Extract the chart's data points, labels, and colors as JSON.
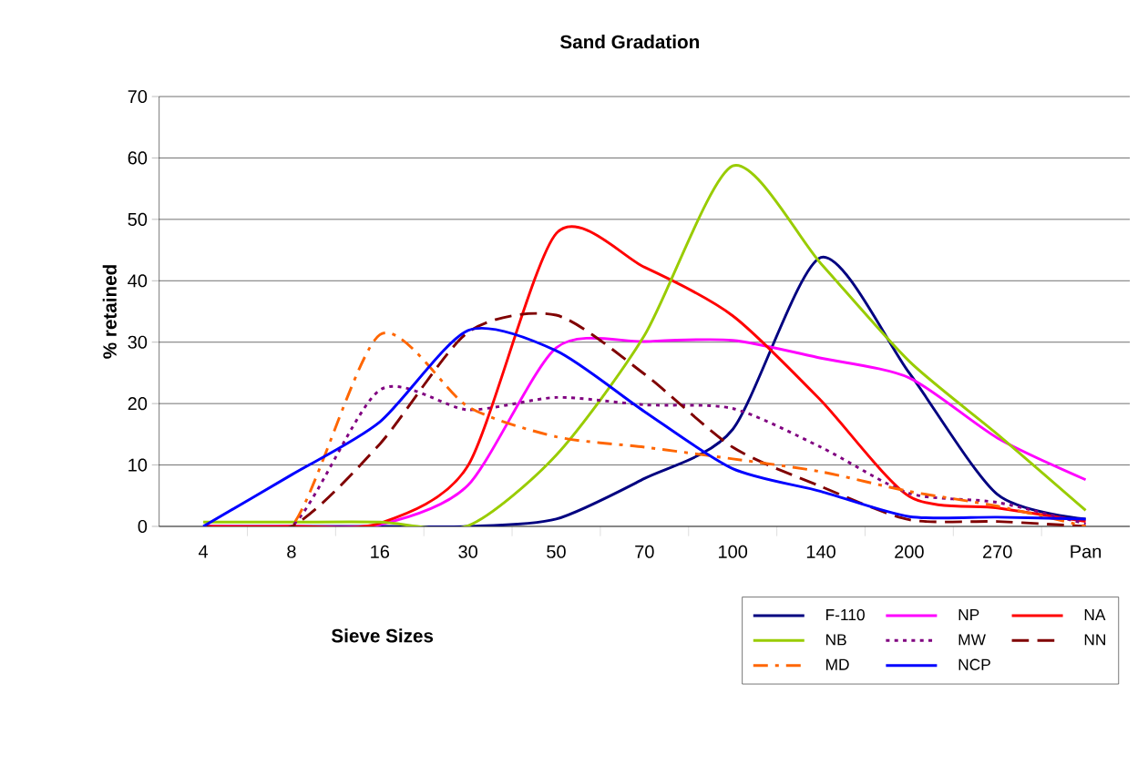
{
  "chart_data": {
    "type": "line",
    "title": "Sand Gradation",
    "xlabel": "Sieve Sizes",
    "ylabel": "% retained",
    "categories": [
      "4",
      "8",
      "16",
      "30",
      "50",
      "70",
      "100",
      "140",
      "200",
      "270",
      "Pan"
    ],
    "ylim": [
      0,
      70
    ],
    "yticks": [
      0,
      10,
      20,
      30,
      40,
      50,
      60,
      70
    ],
    "grid": "y",
    "legend": "bottom right",
    "series": [
      {
        "name": "F-110",
        "color": "#000080",
        "line_style": "solid",
        "values": [
          0,
          0,
          0,
          0,
          1.2,
          7.8,
          15.8,
          43.8,
          25,
          5.2,
          1.2
        ]
      },
      {
        "name": "NP",
        "color": "#ff00ff",
        "line_style": "solid",
        "values": [
          0,
          0,
          0.3,
          6.7,
          29.1,
          30.1,
          30.3,
          27.4,
          24.2,
          14.4,
          7.6
        ]
      },
      {
        "name": "NA",
        "color": "#ff0000",
        "line_style": "solid",
        "values": [
          0,
          0,
          0.5,
          9.9,
          47.7,
          42.2,
          34.3,
          20.5,
          4.9,
          3.0,
          0.8
        ]
      },
      {
        "name": "NB",
        "color": "#99cc00",
        "line_style": "solid",
        "values": [
          0.7,
          0.7,
          0.7,
          0.1,
          11.6,
          31.1,
          58.7,
          42.8,
          26.9,
          15.0,
          2.6
        ]
      },
      {
        "name": "MW",
        "color": "#800080",
        "line_style": "dotted",
        "values": [
          0,
          0,
          22.2,
          19.0,
          21.0,
          19.8,
          19.2,
          12.9,
          5.4,
          3.9,
          0.4
        ]
      },
      {
        "name": "NN",
        "color": "#800000",
        "line_style": "dashed",
        "values": [
          0,
          0,
          13.4,
          31.6,
          34.4,
          24.8,
          12.9,
          6.5,
          1.1,
          0.8,
          0
        ]
      },
      {
        "name": "MD",
        "color": "#ff6600",
        "line_style": "dashdot",
        "values": [
          0,
          0,
          31.2,
          19.5,
          14.6,
          12.9,
          11.0,
          8.9,
          5.7,
          3.3,
          0
        ]
      },
      {
        "name": "NCP",
        "color": "#0000ff",
        "line_style": "solid",
        "values": [
          0,
          8.4,
          17,
          31.9,
          28.6,
          18.7,
          9.4,
          5.7,
          1.6,
          1.5,
          1.2
        ]
      }
    ]
  }
}
